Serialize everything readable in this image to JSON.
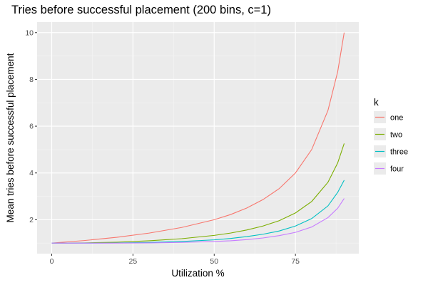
{
  "chart_data": {
    "type": "line",
    "title": "Tries before successful placement (200 bins, c=1)",
    "xlabel": "Utilization %",
    "ylabel": "Mean tries before successful placement",
    "xlim": [
      -4.5,
      94.5
    ],
    "ylim": [
      0.55,
      10.45
    ],
    "x_ticks": [
      0,
      25,
      50,
      75
    ],
    "y_ticks": [
      2,
      4,
      6,
      8,
      10
    ],
    "grid": true,
    "legend": {
      "title": "k",
      "position": "right"
    },
    "series": [
      {
        "name": "one",
        "color": "#F8766D",
        "x": [
          0,
          10,
          20,
          30,
          40,
          50,
          55,
          60,
          65,
          70,
          75,
          80,
          85,
          88,
          90
        ],
        "y": [
          1.0,
          1.11,
          1.25,
          1.43,
          1.67,
          2.0,
          2.22,
          2.5,
          2.86,
          3.33,
          4.0,
          5.0,
          6.67,
          8.33,
          10.0
        ]
      },
      {
        "name": "two",
        "color": "#7CAE00",
        "x": [
          0,
          10,
          20,
          30,
          40,
          50,
          55,
          60,
          65,
          70,
          75,
          80,
          85,
          88,
          90
        ],
        "y": [
          1.0,
          1.01,
          1.04,
          1.1,
          1.19,
          1.33,
          1.43,
          1.56,
          1.73,
          1.96,
          2.29,
          2.78,
          3.6,
          4.43,
          5.26
        ]
      },
      {
        "name": "three",
        "color": "#00BFC4",
        "x": [
          0,
          10,
          20,
          30,
          40,
          50,
          55,
          60,
          65,
          70,
          75,
          80,
          85,
          88,
          90
        ],
        "y": [
          1.0,
          1.0,
          1.01,
          1.03,
          1.07,
          1.14,
          1.2,
          1.28,
          1.38,
          1.52,
          1.73,
          2.05,
          2.59,
          3.17,
          3.69
        ]
      },
      {
        "name": "four",
        "color": "#C77CFF",
        "x": [
          0,
          10,
          20,
          30,
          40,
          50,
          55,
          60,
          65,
          70,
          75,
          80,
          85,
          88,
          90
        ],
        "y": [
          1.0,
          1.0,
          1.0,
          1.01,
          1.03,
          1.07,
          1.1,
          1.15,
          1.22,
          1.32,
          1.46,
          1.69,
          2.09,
          2.49,
          2.91
        ]
      }
    ]
  }
}
